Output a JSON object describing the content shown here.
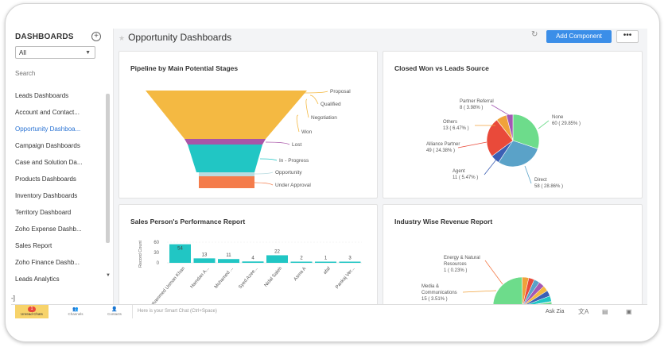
{
  "sidebar": {
    "heading": "DASHBOARDS",
    "add_icon": "plus-circle-icon",
    "filter_value": "All",
    "search_placeholder": "Search",
    "items": [
      {
        "label": "Leads Dashboards",
        "active": false
      },
      {
        "label": "Account and Contact...",
        "active": false
      },
      {
        "label": "Opportunity Dashboa...",
        "active": true
      },
      {
        "label": "Campaign Dashboards",
        "active": false
      },
      {
        "label": "Case and Solution Da...",
        "active": false
      },
      {
        "label": "Products Dashboards",
        "active": false
      },
      {
        "label": "Inventory Dashboards",
        "active": false
      },
      {
        "label": "Territory Dashboard",
        "active": false
      },
      {
        "label": "Zoho Expense Dashb...",
        "active": false
      },
      {
        "label": "Sales Report",
        "active": false
      },
      {
        "label": "Zoho Finance Dashb...",
        "active": false
      },
      {
        "label": "Leads Analytics",
        "active": false
      }
    ]
  },
  "header": {
    "title": "Opportunity Dashboards",
    "add_button": "Add Component",
    "more_button": "•••",
    "accent_color": "#3b8ee8"
  },
  "panels": {
    "funnel": {
      "title": "Pipeline by Main Potential Stages",
      "chart_data": {
        "type": "funnel",
        "stages": [
          {
            "label": "Proposal",
            "color": "#f4b942"
          },
          {
            "label": "Qualified",
            "color": "#f4b942"
          },
          {
            "label": "Negotiation",
            "color": "#f4b942"
          },
          {
            "label": "Won",
            "color": "#f4b942"
          },
          {
            "label": "Lost",
            "color": "#a855a8"
          },
          {
            "label": "In - Progress",
            "color": "#21c6c4"
          },
          {
            "label": "Opportunity",
            "color": "#b9dbe0"
          },
          {
            "label": "Under Approval",
            "color": "#f47c4b"
          }
        ]
      }
    },
    "pie": {
      "title": "Closed Won vs Leads Source",
      "chart_data": {
        "type": "pie",
        "slices": [
          {
            "name": "None",
            "count": "60",
            "percent": "( 29.85% )",
            "value": 29.85,
            "color": "#6ddc8b"
          },
          {
            "name": "Direct",
            "count": "58",
            "percent": "( 28.86% )",
            "value": 28.86,
            "color": "#5aa2c8"
          },
          {
            "name": "Agent",
            "count": "11",
            "percent": "( 5.47% )",
            "value": 5.47,
            "color": "#3c5fb4"
          },
          {
            "name": "Alliance Partner",
            "count": "49",
            "percent": "( 24.38% )",
            "value": 24.38,
            "color": "#e94a3a"
          },
          {
            "name": "Others",
            "count": "13",
            "percent": "( 6.47% )",
            "value": 6.47,
            "color": "#f0a23b"
          },
          {
            "name": "Partner Referral",
            "count": "8",
            "percent": "( 3.98% )",
            "value": 3.98,
            "color": "#a458b4"
          }
        ]
      }
    },
    "bar": {
      "title": "Sales Person's Performance Report",
      "chart_data": {
        "type": "bar",
        "ylabel": "Record Count",
        "yticks": [
          "60",
          "30",
          "0"
        ],
        "ylim": [
          0,
          60
        ],
        "color": "#21c6c4",
        "categories": [
          "Mohammed Usman Khan",
          "Hamdan A...",
          "Mohamed ...",
          "Syed Azee...",
          "Nidal Saleh",
          "Asma A",
          "afaf",
          "Pankaj Ver..."
        ],
        "values": [
          54,
          13,
          11,
          4,
          22,
          2,
          1,
          3
        ],
        "value_labels": [
          "54",
          "13",
          "11",
          "4",
          "22",
          "2",
          "1",
          "3"
        ]
      }
    },
    "industry": {
      "title": "Industry Wise Revenue Report",
      "labels": [
        {
          "line1": "Energy & Natural",
          "line2": "Resources",
          "line3": "1 ( 0.23% )"
        },
        {
          "line1": "Media &",
          "line2": "Communications",
          "line3": "15 ( 3.51% )"
        }
      ],
      "chart_data": {
        "type": "pie",
        "slices": [
          {
            "name": "",
            "value": 74,
            "color": "#6ddc8b"
          },
          {
            "name": "Media & Communications",
            "value": 3.51,
            "color": "#f0a23b"
          },
          {
            "name": "",
            "value": 3,
            "color": "#e94a3a"
          },
          {
            "name": "",
            "value": 3,
            "color": "#5aa2c8"
          },
          {
            "name": "",
            "value": 3,
            "color": "#a458b4"
          },
          {
            "name": "",
            "value": 3,
            "color": "#f4b942"
          },
          {
            "name": "",
            "value": 3,
            "color": "#3c5fb4"
          },
          {
            "name": "",
            "value": 3,
            "color": "#21c6c4"
          },
          {
            "name": "Energy & Natural Resources",
            "value": 0.23,
            "color": "#f47c4b"
          }
        ]
      }
    }
  },
  "bottom_bar": {
    "unread_chats": "Unread Chats",
    "unread_count": "1",
    "channels": "Channels",
    "contacts": "Contacts",
    "smart_chat_placeholder": "Here is your Smart Chat (Ctrl+Space)",
    "ask_zia": "Ask Zia"
  }
}
